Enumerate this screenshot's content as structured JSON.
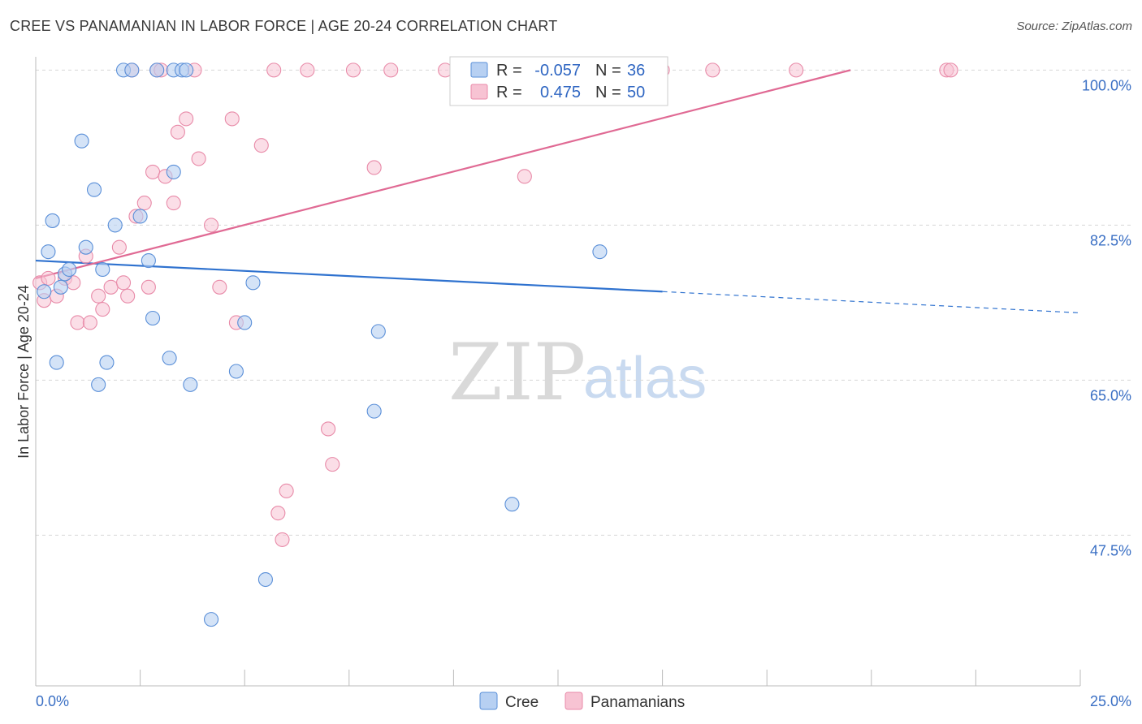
{
  "header": {
    "title": "CREE VS PANAMANIAN IN LABOR FORCE | AGE 20-24 CORRELATION CHART",
    "source": "Source: ZipAtlas.com"
  },
  "watermark": {
    "zip": "ZIP",
    "atlas": "atlas"
  },
  "colors": {
    "cree_fill": "#b7d0f2",
    "cree_stroke": "#5a8fd8",
    "cree_line": "#2f72cf",
    "pan_fill": "#f7c3d3",
    "pan_stroke": "#e88aa8",
    "pan_line": "#e06a94",
    "grid": "#d8d8d8",
    "axis_text": "#3a6fc4"
  },
  "legend": {
    "rows": [
      {
        "r_label": "R =",
        "r_value": "-0.057",
        "n_label": "N =",
        "n_value": "36"
      },
      {
        "r_label": "R =",
        "r_value": "0.475",
        "n_label": "N =",
        "n_value": "50"
      }
    ]
  },
  "bottom_legend": {
    "cree": "Cree",
    "panamanians": "Panamanians"
  },
  "chart_data": {
    "type": "scatter",
    "title": "CREE VS PANAMANIAN IN LABOR FORCE | AGE 20-24 CORRELATION CHART",
    "xlabel": "",
    "ylabel": "In Labor Force | Age 20-24",
    "xlim": [
      0,
      25
    ],
    "ylim": [
      30.5,
      101.5
    ],
    "x_tick_labels": [
      "0.0%",
      "25.0%"
    ],
    "y_ticks": [
      47.5,
      65.0,
      82.5,
      100.0
    ],
    "y_tick_labels": [
      "47.5%",
      "65.0%",
      "82.5%",
      "100.0%"
    ],
    "series": [
      {
        "name": "Cree",
        "points": [
          [
            0.2,
            75.0
          ],
          [
            0.3,
            79.5
          ],
          [
            0.4,
            83.0
          ],
          [
            0.5,
            67.0
          ],
          [
            0.6,
            75.5
          ],
          [
            0.7,
            77.0
          ],
          [
            0.8,
            77.5
          ],
          [
            1.1,
            92.0
          ],
          [
            1.2,
            80.0
          ],
          [
            1.4,
            86.5
          ],
          [
            1.5,
            64.5
          ],
          [
            1.6,
            77.5
          ],
          [
            1.7,
            67.0
          ],
          [
            1.9,
            82.5
          ],
          [
            2.1,
            100.0
          ],
          [
            2.3,
            100.0
          ],
          [
            2.5,
            83.5
          ],
          [
            2.7,
            78.5
          ],
          [
            2.8,
            72.0
          ],
          [
            2.9,
            100.0
          ],
          [
            3.2,
            67.5
          ],
          [
            3.3,
            88.5
          ],
          [
            3.3,
            100.0
          ],
          [
            3.5,
            100.0
          ],
          [
            3.7,
            64.5
          ],
          [
            4.8,
            66.0
          ],
          [
            5.0,
            71.5
          ],
          [
            5.2,
            76.0
          ],
          [
            5.5,
            42.5
          ],
          [
            8.2,
            70.5
          ],
          [
            8.1,
            61.5
          ],
          [
            11.4,
            51.0
          ],
          [
            13.5,
            79.5
          ],
          [
            14.9,
            100.0
          ],
          [
            4.2,
            38.0
          ],
          [
            3.6,
            100.0
          ]
        ],
        "trend": {
          "x0": 0.0,
          "y0": 78.5,
          "x1_solid": 15.0,
          "y1_solid": 75.0,
          "x1": 25.0,
          "y1": 72.6
        }
      },
      {
        "name": "Panamanians",
        "points": [
          [
            0.1,
            76.0
          ],
          [
            0.2,
            74.0
          ],
          [
            0.3,
            76.5
          ],
          [
            0.5,
            74.5
          ],
          [
            0.7,
            76.5
          ],
          [
            0.9,
            76.0
          ],
          [
            1.0,
            71.5
          ],
          [
            1.2,
            79.0
          ],
          [
            1.3,
            71.5
          ],
          [
            1.5,
            74.5
          ],
          [
            1.6,
            73.0
          ],
          [
            1.8,
            75.5
          ],
          [
            2.0,
            80.0
          ],
          [
            2.1,
            76.0
          ],
          [
            2.2,
            74.5
          ],
          [
            2.4,
            83.5
          ],
          [
            2.6,
            85.0
          ],
          [
            2.7,
            75.5
          ],
          [
            2.8,
            88.5
          ],
          [
            2.9,
            100.0
          ],
          [
            3.0,
            100.0
          ],
          [
            3.1,
            88.0
          ],
          [
            3.3,
            85.0
          ],
          [
            3.4,
            93.0
          ],
          [
            3.6,
            94.5
          ],
          [
            3.8,
            100.0
          ],
          [
            3.9,
            90.0
          ],
          [
            4.2,
            82.5
          ],
          [
            4.4,
            75.5
          ],
          [
            4.7,
            94.5
          ],
          [
            4.8,
            71.5
          ],
          [
            5.4,
            91.5
          ],
          [
            5.7,
            100.0
          ],
          [
            6.5,
            100.0
          ],
          [
            7.0,
            59.5
          ],
          [
            7.1,
            55.5
          ],
          [
            7.6,
            100.0
          ],
          [
            8.1,
            89.0
          ],
          [
            8.5,
            100.0
          ],
          [
            9.8,
            100.0
          ],
          [
            11.7,
            88.0
          ],
          [
            15.0,
            100.0
          ],
          [
            16.2,
            100.0
          ],
          [
            18.2,
            100.0
          ],
          [
            21.8,
            100.0
          ],
          [
            21.9,
            100.0
          ],
          [
            6.0,
            52.5
          ],
          [
            5.8,
            50.0
          ],
          [
            5.9,
            47.0
          ],
          [
            2.3,
            100.0
          ]
        ],
        "trend": {
          "x0": 0.0,
          "y0": 76.5,
          "x1": 19.5,
          "y1": 100.0
        }
      }
    ]
  }
}
